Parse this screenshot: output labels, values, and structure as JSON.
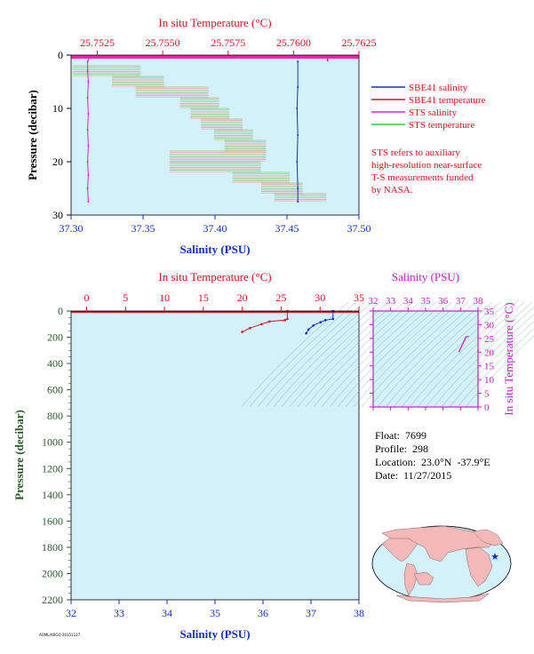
{
  "colors": {
    "plot_bg": "#d4f0f8",
    "temperature": "#e0101e",
    "salinity": "#1030c8",
    "sts_salinity": "#e020e0",
    "sts_temperature": "#40c040",
    "pressure_axis": "#2a5a2a",
    "ts_axis": "#c020c0"
  },
  "legend": {
    "sbe41_salinity": "SBE41 salinity",
    "sbe41_temperature": "SBE41 temperature",
    "sts_salinity": "STS salinity",
    "sts_temperature": "STS temperature",
    "note": [
      "STS refers to auxiliary",
      "high-resolution near-surface",
      "T-S measurements funded",
      "by NASA."
    ]
  },
  "info": {
    "float": "Float:  7699",
    "profile": "Profile:  298",
    "location": "Location:  23.0°N  -37.9°E",
    "date": "Date:  11/27/2015"
  },
  "footer_code": "AOML/ARGO 20151127",
  "chart_data": [
    {
      "type": "line",
      "title": "",
      "top_axis_label": "In situ Temperature (°C)",
      "top_axis_ticks": [
        "25.7525",
        "25.7550",
        "25.7575",
        "25.7600",
        "25.7625"
      ],
      "top_axis_range": [
        25.7515,
        25.7625
      ],
      "xlabel": "Salinity (PSU)",
      "xticks": [
        "37.30",
        "37.35",
        "37.40",
        "37.45",
        "37.50"
      ],
      "xlim": [
        37.3,
        37.5
      ],
      "ylabel": "Pressure (decibar)",
      "yticks": [
        "0",
        "10",
        "20",
        "30"
      ],
      "ylim": [
        0,
        30
      ],
      "series": [
        {
          "name": "SBE41 salinity",
          "axis": "salinity",
          "points": [
            [
              37.4575,
              1.2
            ],
            [
              37.4575,
              6
            ],
            [
              37.457,
              10
            ],
            [
              37.4575,
              15
            ],
            [
              37.457,
              20
            ],
            [
              37.4575,
              25
            ],
            [
              37.4575,
              27.5
            ]
          ]
        },
        {
          "name": "SBE41 temperature",
          "axis": "temperature",
          "points": [
            [
              25.7613,
              0.5
            ],
            [
              25.7613,
              1
            ]
          ]
        },
        {
          "name": "STS salinity",
          "axis": "salinity",
          "points": [
            [
              37.3125,
              0.3
            ],
            [
              37.3115,
              1.2
            ],
            [
              37.3115,
              3
            ],
            [
              37.312,
              5
            ],
            [
              37.3115,
              8
            ],
            [
              37.312,
              11
            ],
            [
              37.3115,
              14
            ],
            [
              37.312,
              17
            ],
            [
              37.3115,
              20
            ],
            [
              37.312,
              22.5
            ],
            [
              37.3115,
              25
            ],
            [
              37.312,
              27.5
            ]
          ]
        },
        {
          "name": "STS temperature",
          "axis": "temperature",
          "points": [
            [
              25.7517,
              2
            ],
            [
              25.7532,
              2
            ],
            [
              25.7532,
              4
            ],
            [
              25.7541,
              4
            ],
            [
              25.7541,
              6
            ],
            [
              25.7558,
              6
            ],
            [
              25.7558,
              8
            ],
            [
              25.7562,
              8
            ],
            [
              25.7562,
              10
            ],
            [
              25.7566,
              10
            ],
            [
              25.7566,
              12
            ],
            [
              25.7571,
              12
            ],
            [
              25.7571,
              14
            ],
            [
              25.7575,
              14
            ],
            [
              25.7575,
              16
            ],
            [
              25.758,
              16
            ],
            [
              25.758,
              18
            ],
            [
              25.7554,
              18
            ],
            [
              25.7554,
              20
            ],
            [
              25.7578,
              20
            ],
            [
              25.7578,
              22
            ],
            [
              25.7589,
              22
            ],
            [
              25.7589,
              24
            ],
            [
              25.7594,
              24
            ],
            [
              25.7594,
              26
            ],
            [
              25.7603,
              26
            ],
            [
              25.7603,
              27.5
            ]
          ]
        }
      ]
    },
    {
      "type": "line",
      "title": "",
      "top_axis_label": "In situ Temperature (°C)",
      "top_axis_ticks": [
        "0",
        "5",
        "10",
        "15",
        "20",
        "25",
        "30",
        "35"
      ],
      "top_axis_range": [
        -2,
        35
      ],
      "xlabel": "Salinity (PSU)",
      "xticks": [
        "32",
        "33",
        "34",
        "35",
        "36",
        "37",
        "38"
      ],
      "xlim": [
        32,
        38
      ],
      "ylabel": "Pressure (decibar)",
      "yticks": [
        "0",
        "200",
        "400",
        "600",
        "800",
        "1000",
        "1200",
        "1400",
        "1600",
        "1800",
        "2000",
        "2200"
      ],
      "ylim": [
        0,
        2200
      ],
      "series": [
        {
          "name": "Temperature",
          "axis": "temperature",
          "points": [
            [
              25.8,
              0
            ],
            [
              25.8,
              60
            ],
            [
              25.5,
              70
            ],
            [
              23.5,
              80
            ],
            [
              22.5,
              100
            ],
            [
              21.0,
              130
            ],
            [
              20.0,
              160
            ]
          ]
        },
        {
          "name": "Salinity",
          "axis": "salinity",
          "points": [
            [
              37.46,
              0
            ],
            [
              37.46,
              60
            ],
            [
              37.3,
              70
            ],
            [
              37.2,
              85
            ],
            [
              37.05,
              110
            ],
            [
              36.95,
              140
            ],
            [
              36.9,
              170
            ]
          ]
        }
      ]
    },
    {
      "type": "line",
      "title": "",
      "top_axis_label": "Salinity (PSU)",
      "top_axis_ticks": [
        "32",
        "33",
        "34",
        "35",
        "36",
        "37",
        "38"
      ],
      "xlim": [
        32,
        38
      ],
      "ylabel": "In situ Temperature (°C)",
      "yticks": [
        "0",
        "5",
        "10",
        "15",
        "20",
        "25",
        "30",
        "35"
      ],
      "ylim": [
        0,
        35
      ],
      "series": [
        {
          "name": "T-S",
          "points": [
            [
              36.9,
              20
            ],
            [
              37.05,
              22
            ],
            [
              37.2,
              24
            ],
            [
              37.3,
              25.5
            ],
            [
              37.46,
              25.8
            ]
          ]
        }
      ]
    }
  ]
}
